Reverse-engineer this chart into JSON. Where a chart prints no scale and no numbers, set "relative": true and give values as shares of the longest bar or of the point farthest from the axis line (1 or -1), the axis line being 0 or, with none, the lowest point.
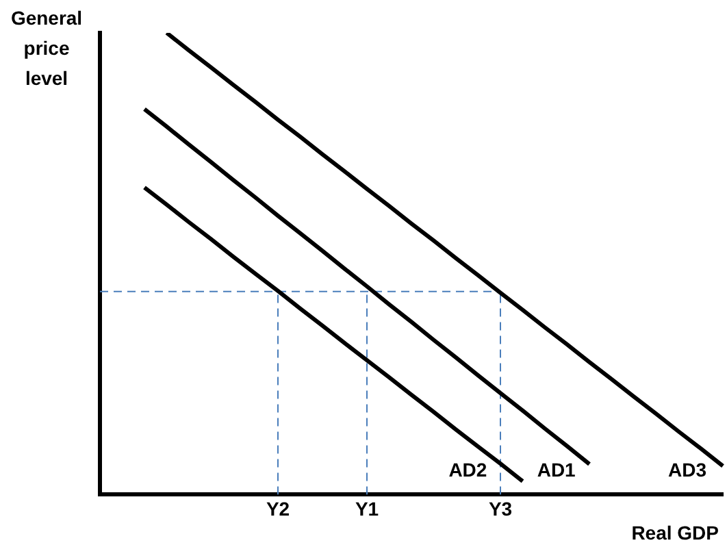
{
  "chart_data": {
    "type": "line",
    "xlabel": "Real GDP",
    "ylabel": "General price level",
    "relative": true,
    "categories": [
      null,
      null,
      null,
      null,
      null,
      null,
      null,
      null,
      "Y2",
      null,
      null,
      null,
      "Y1",
      null,
      null,
      null,
      null,
      null,
      "Y3",
      null,
      null,
      null,
      null,
      null,
      null,
      null,
      null,
      null,
      null
    ],
    "tick_labels": "x",
    "grid": false,
    "legend": false,
    "marker": "none",
    "series": [
      {
        "name": "AD2",
        "color": "#000000",
        "values": [
          null,
          null,
          0.665,
          0.628,
          0.59,
          0.553,
          0.515,
          0.478,
          0.441,
          0.403,
          0.366,
          0.328,
          0.291,
          0.254,
          0.216,
          0.179,
          0.141,
          0.104,
          0.067,
          0.029,
          null,
          null,
          null,
          null,
          null,
          null,
          null,
          null,
          null
        ]
      },
      {
        "name": "AD1",
        "color": "#000000",
        "values": [
          null,
          null,
          0.835,
          0.797,
          0.758,
          0.72,
          0.681,
          0.643,
          0.604,
          0.566,
          0.528,
          0.489,
          0.451,
          0.412,
          0.374,
          0.335,
          0.297,
          0.258,
          0.22,
          0.182,
          0.143,
          0.105,
          0.066,
          null,
          null,
          null,
          null,
          null,
          null
        ]
      },
      {
        "name": "AD3",
        "color": "#000000",
        "values": [
          null,
          null,
          null,
          1,
          0.962,
          0.925,
          0.887,
          0.85,
          0.812,
          0.775,
          0.737,
          0.7,
          0.662,
          0.625,
          0.587,
          0.55,
          0.512,
          0.475,
          0.437,
          0.4,
          0.362,
          0.325,
          0.287,
          0.25,
          0.212,
          0.175,
          0.137,
          0.1,
          0.062
        ]
      },
      {
        "color": "#4a7ebb",
        "line_style": "dashed",
        "values": [
          0.44,
          0.44,
          0.44,
          0.44,
          0.44,
          0.44,
          0.44,
          0.44,
          0.44,
          0.44,
          0.44,
          0.44,
          0.44,
          0.44,
          0.44,
          0.44,
          0.44,
          0.44,
          0.44,
          null,
          null,
          null,
          null,
          null,
          null,
          null,
          null,
          null,
          null
        ]
      },
      {
        "color": "#4a7ebb",
        "line_style": "dashed",
        "x": [
          "Y2",
          "Y2"
        ],
        "values": [
          0,
          0.44
        ]
      },
      {
        "color": "#4a7ebb",
        "line_style": "dashed",
        "x": [
          "Y1",
          "Y1"
        ],
        "values": [
          0,
          0.44
        ]
      },
      {
        "color": "#4a7ebb",
        "line_style": "dashed",
        "x": [
          "Y3",
          "Y3"
        ],
        "values": [
          0,
          0.44
        ]
      }
    ]
  }
}
